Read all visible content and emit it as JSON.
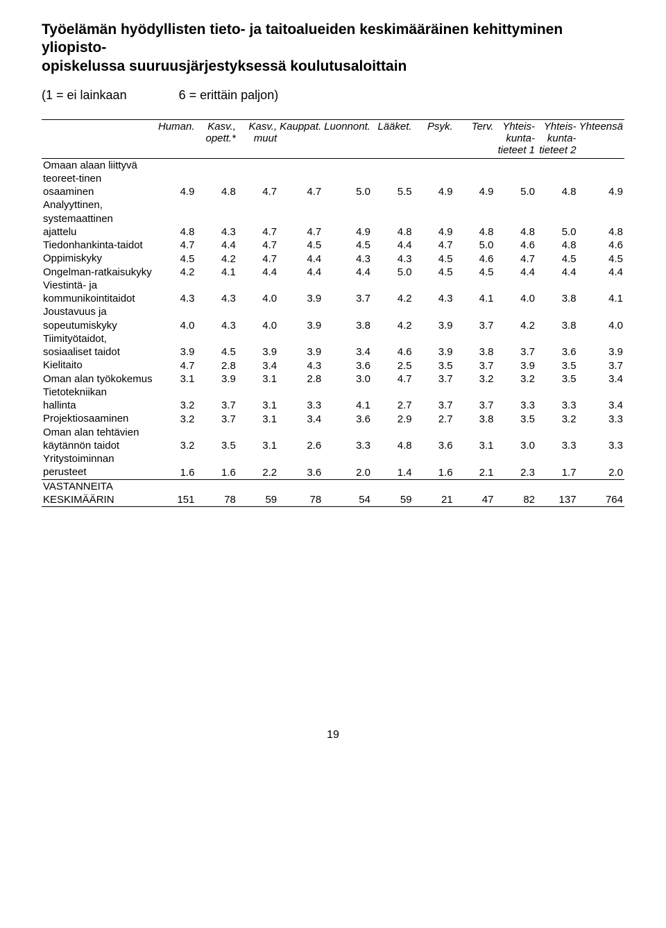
{
  "title_line1": "Työelämän hyödyllisten tieto- ja taitoalueiden keskimääräinen kehittyminen yliopisto-",
  "title_line2": "opiskelussa suuruusjärjestyksessä koulutusaloittain",
  "scale_left": "(1 = ei lainkaan",
  "scale_right": "6 = erittäin paljon)",
  "page_number": "19",
  "columns": [
    "Human.",
    "Kasv., opett.*",
    "Kasv., muut",
    "Kauppat.",
    "Luonnont.",
    "Lääket.",
    "Psyk.",
    "Terv.",
    "Yhteis-kunta-tieteet 1",
    "Yhteis-kunta-tieteet 2",
    "Yhteensä"
  ],
  "header_lines": [
    [
      "Human.",
      "Kasv.,",
      "Kasv.,",
      "Kauppat.",
      "Luonnont.",
      "Lääket.",
      "Psyk.",
      "Terv.",
      "Yhteis-",
      "Yhteis-",
      "Yhteensä"
    ],
    [
      "",
      "opett.*",
      "muut",
      "",
      "",
      "",
      "",
      "",
      "kunta-",
      "kunta-",
      ""
    ],
    [
      "",
      "",
      "",
      "",
      "",
      "",
      "",
      "",
      "tieteet 1",
      "tieteet 2",
      ""
    ]
  ],
  "rows": [
    {
      "label": "Omaan alaan liittyvä teoreet-tinen osaaminen",
      "values": [
        "4.9",
        "4.8",
        "4.7",
        "4.7",
        "5.0",
        "5.5",
        "4.9",
        "4.9",
        "5.0",
        "4.8",
        "4.9"
      ]
    },
    {
      "label": "Analyyttinen, systemaattinen ajattelu",
      "values": [
        "4.8",
        "4.3",
        "4.7",
        "4.7",
        "4.9",
        "4.8",
        "4.9",
        "4.8",
        "4.8",
        "5.0",
        "4.8"
      ]
    },
    {
      "label": "Tiedonhankinta-taidot",
      "values": [
        "4.7",
        "4.4",
        "4.7",
        "4.5",
        "4.5",
        "4.4",
        "4.7",
        "5.0",
        "4.6",
        "4.8",
        "4.6"
      ]
    },
    {
      "label": "Oppimiskyky",
      "values": [
        "4.5",
        "4.2",
        "4.7",
        "4.4",
        "4.3",
        "4.3",
        "4.5",
        "4.6",
        "4.7",
        "4.5",
        "4.5"
      ]
    },
    {
      "label": "Ongelman-ratkaisukyky",
      "values": [
        "4.2",
        "4.1",
        "4.4",
        "4.4",
        "4.4",
        "5.0",
        "4.5",
        "4.5",
        "4.4",
        "4.4",
        "4.4"
      ]
    },
    {
      "label": "Viestintä- ja kommunikointitaidot",
      "values": [
        "4.3",
        "4.3",
        "4.0",
        "3.9",
        "3.7",
        "4.2",
        "4.3",
        "4.1",
        "4.0",
        "3.8",
        "4.1"
      ]
    },
    {
      "label": "Joustavuus ja sopeutumiskyky",
      "values": [
        "4.0",
        "4.3",
        "4.0",
        "3.9",
        "3.8",
        "4.2",
        "3.9",
        "3.7",
        "4.2",
        "3.8",
        "4.0"
      ]
    },
    {
      "label": "Tiimityötaidot, sosiaaliset taidot",
      "values": [
        "3.9",
        "4.5",
        "3.9",
        "3.9",
        "3.4",
        "4.6",
        "3.9",
        "3.8",
        "3.7",
        "3.6",
        "3.9"
      ]
    },
    {
      "label": "Kielitaito",
      "values": [
        "4.7",
        "2.8",
        "3.4",
        "4.3",
        "3.6",
        "2.5",
        "3.5",
        "3.7",
        "3.9",
        "3.5",
        "3.7"
      ]
    },
    {
      "label": "Oman alan työkokemus",
      "values": [
        "3.1",
        "3.9",
        "3.1",
        "2.8",
        "3.0",
        "4.7",
        "3.7",
        "3.2",
        "3.2",
        "3.5",
        "3.4"
      ]
    },
    {
      "label": "Tietotekniikan hallinta",
      "values": [
        "3.2",
        "3.7",
        "3.1",
        "3.3",
        "4.1",
        "2.7",
        "3.7",
        "3.7",
        "3.3",
        "3.3",
        "3.4"
      ]
    },
    {
      "label": "Projektiosaaminen",
      "values": [
        "3.2",
        "3.7",
        "3.1",
        "3.4",
        "3.6",
        "2.9",
        "2.7",
        "3.8",
        "3.5",
        "3.2",
        "3.3"
      ]
    },
    {
      "label": "Oman alan tehtävien käytännön taidot",
      "values": [
        "3.2",
        "3.5",
        "3.1",
        "2.6",
        "3.3",
        "4.8",
        "3.6",
        "3.1",
        "3.0",
        "3.3",
        "3.3"
      ]
    },
    {
      "label": "Yritystoiminnan perusteet",
      "values": [
        "1.6",
        "1.6",
        "2.2",
        "3.6",
        "2.0",
        "1.4",
        "1.6",
        "2.1",
        "2.3",
        "1.7",
        "2.0"
      ],
      "sep": true
    },
    {
      "label": "VASTANNEITA KESKIMÄÄRIN",
      "values": [
        "151",
        "78",
        "59",
        "78",
        "54",
        "59",
        "21",
        "47",
        "82",
        "137",
        "764"
      ],
      "heavy": true
    }
  ],
  "style": {
    "text_color": "#000000",
    "background_color": "#ffffff",
    "font_family": "Arial, Helvetica, sans-serif",
    "title_fontsize": 21,
    "body_fontsize": 15,
    "scale_fontsize": 18,
    "border_color": "#000000"
  }
}
